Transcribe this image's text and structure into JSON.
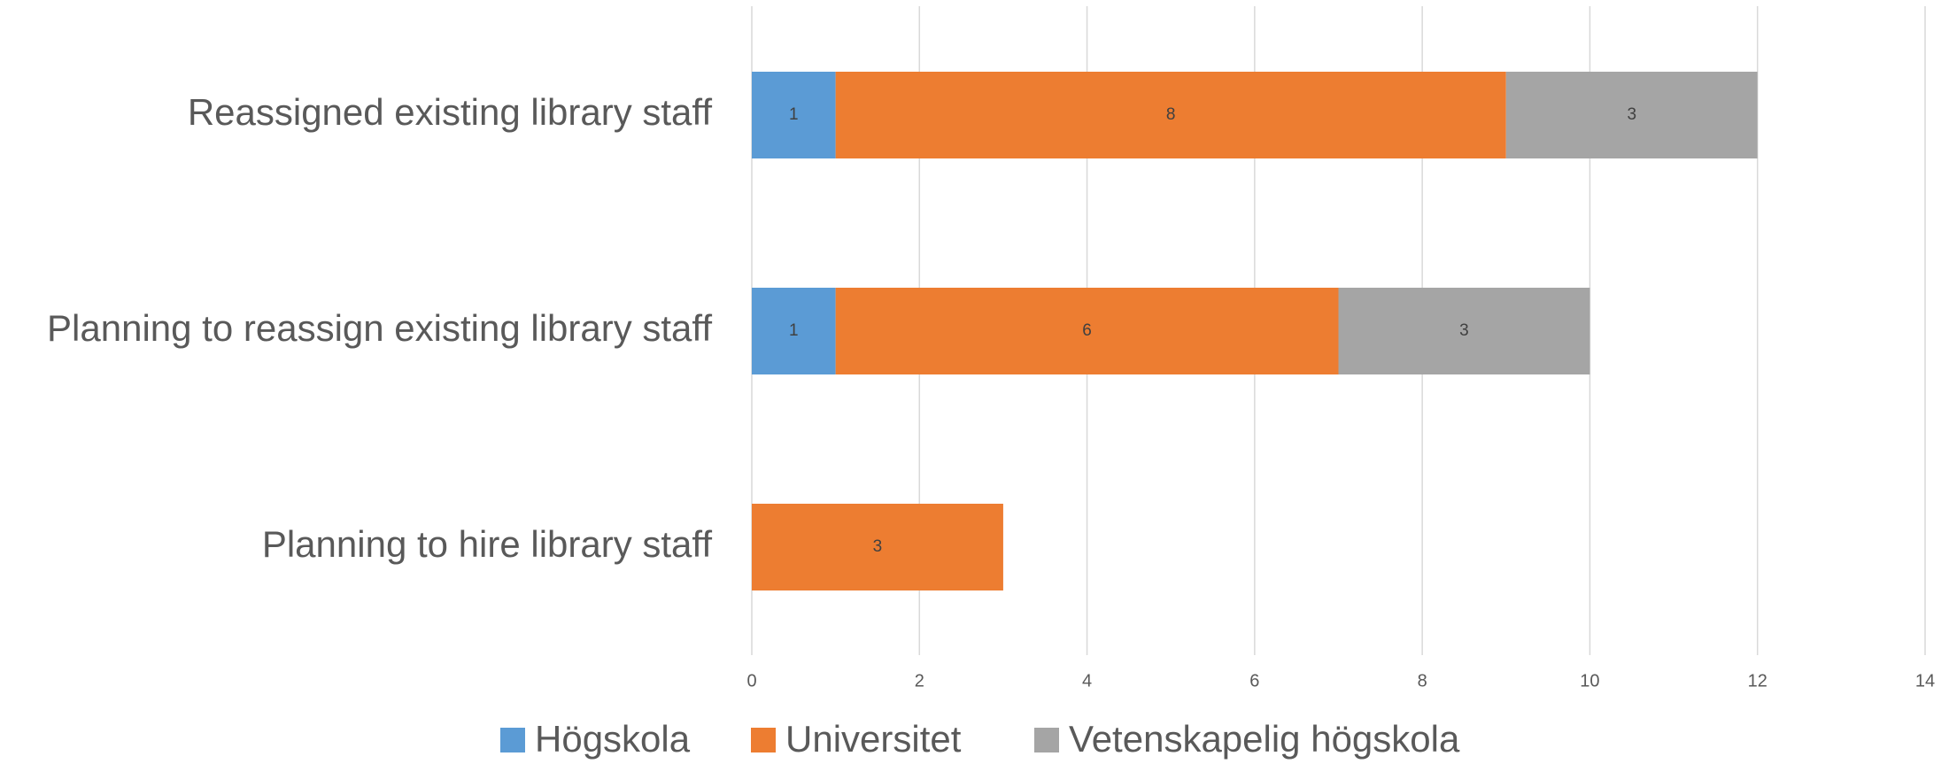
{
  "chart_data": {
    "type": "stacked_bar_horizontal",
    "categories": [
      "Reassigned existing library staff",
      "Planning to reassign existing library staff",
      "Planning to hire library staff"
    ],
    "series": [
      {
        "name": "Högskola",
        "color": "#5b9bd5",
        "values": [
          1,
          1,
          0
        ]
      },
      {
        "name": "Universitet",
        "color": "#ed7d31",
        "values": [
          8,
          6,
          3
        ]
      },
      {
        "name": "Vetenskapelig högskola",
        "color": "#a5a5a5",
        "values": [
          3,
          3,
          0
        ]
      }
    ],
    "xlim": [
      0,
      14
    ],
    "xticks": [
      0,
      2,
      4,
      6,
      8,
      10,
      12,
      14
    ],
    "grid": true,
    "legend": "bottom"
  }
}
